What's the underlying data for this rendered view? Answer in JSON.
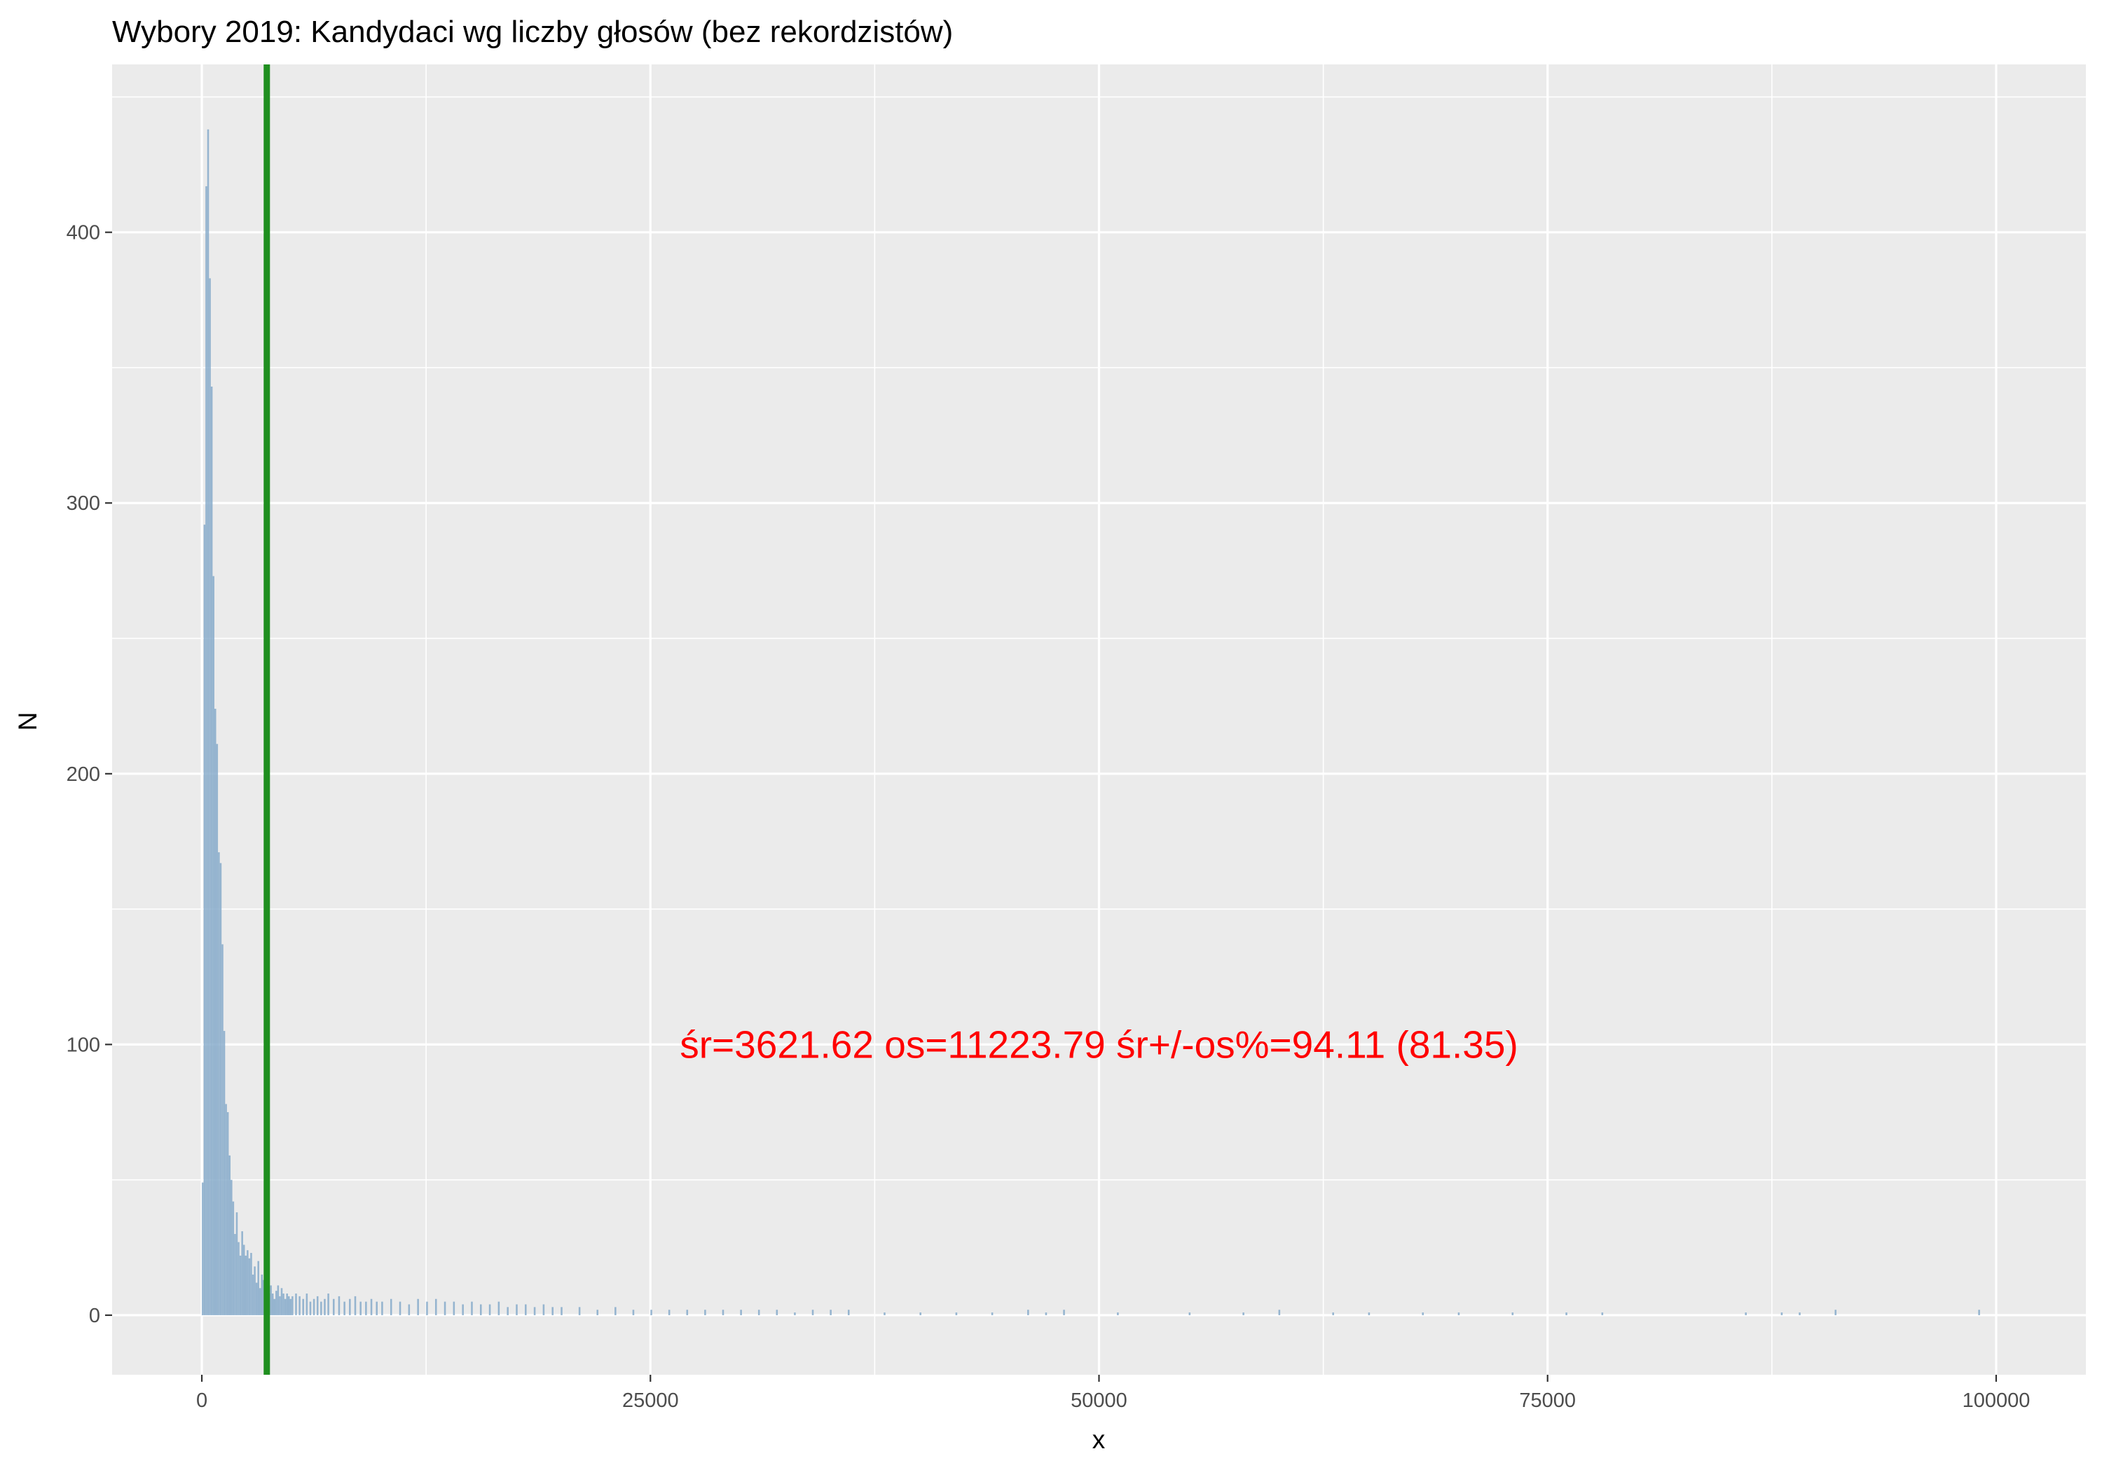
{
  "chart_data": {
    "type": "bar",
    "title": "Wybory 2019: Kandydaci wg liczby głosów (bez rekordzistów)",
    "xlabel": "x",
    "ylabel": "N",
    "xlim": [
      -5000,
      105000
    ],
    "ylim": [
      -22,
      462
    ],
    "x_ticks": [
      0,
      25000,
      50000,
      75000,
      100000
    ],
    "x_tick_labels": [
      "0",
      "25000",
      "50000",
      "75000",
      "100000"
    ],
    "y_ticks": [
      0,
      100,
      200,
      300,
      400
    ],
    "y_tick_labels": [
      "0",
      "100",
      "200",
      "300",
      "400"
    ],
    "grid": true,
    "bin_width": 100,
    "bar_color": "#86aaca",
    "mean_line": {
      "x": 3621.62,
      "color": "#1f8f1f"
    },
    "annotation": {
      "text": "śr=3621.62 os=11223.79 śr+/-os%=94.11 (81.35)",
      "x": 50000,
      "y": 100,
      "color": "#ff0000"
    },
    "bins_x": [
      0,
      100,
      200,
      300,
      400,
      500,
      600,
      700,
      800,
      900,
      1000,
      1100,
      1200,
      1300,
      1400,
      1500,
      1600,
      1700,
      1800,
      1900,
      2000,
      2100,
      2200,
      2300,
      2400,
      2500,
      2600,
      2700,
      2800,
      2900,
      3000,
      3100,
      3200,
      3300,
      3400,
      3500,
      3600,
      3700,
      3800,
      3900,
      4000,
      4100,
      4200,
      4300,
      4400,
      4500,
      4600,
      4700,
      4800,
      4900,
      5000,
      5200,
      5400,
      5600,
      5800,
      6000,
      6200,
      6400,
      6600,
      6800,
      7000,
      7300,
      7600,
      7900,
      8200,
      8500,
      8800,
      9100,
      9400,
      9700,
      10000,
      10500,
      11000,
      11500,
      12000,
      12500,
      13000,
      13500,
      14000,
      14500,
      15000,
      15500,
      16000,
      16500,
      17000,
      17500,
      18000,
      18500,
      19000,
      19500,
      20000,
      21000,
      22000,
      23000,
      24000,
      25000,
      26000,
      27000,
      28000,
      29000,
      30000,
      31000,
      32000,
      33000,
      34000,
      35000,
      36000,
      38000,
      40000,
      42000,
      44000,
      46000,
      47000,
      48000,
      51000,
      55000,
      58000,
      60000,
      63000,
      65000,
      68000,
      70000,
      73000,
      76000,
      78000,
      86000,
      88000,
      89000,
      91000,
      99000
    ],
    "bins_y": [
      49,
      292,
      417,
      438,
      383,
      343,
      273,
      224,
      211,
      171,
      167,
      137,
      105,
      78,
      75,
      59,
      50,
      42,
      30,
      38,
      27,
      22,
      31,
      26,
      22,
      24,
      21,
      23,
      15,
      18,
      12,
      20,
      10,
      15,
      13,
      11,
      9,
      8,
      11,
      8,
      6,
      9,
      11,
      7,
      10,
      8,
      6,
      8,
      7,
      6,
      7,
      8,
      7,
      6,
      8,
      5,
      6,
      7,
      5,
      6,
      8,
      6,
      7,
      5,
      6,
      7,
      5,
      5,
      6,
      5,
      5,
      6,
      5,
      4,
      6,
      5,
      6,
      5,
      5,
      4,
      5,
      4,
      4,
      5,
      3,
      4,
      4,
      3,
      4,
      3,
      3,
      3,
      2,
      3,
      2,
      2,
      2,
      2,
      2,
      2,
      2,
      2,
      2,
      1,
      2,
      2,
      2,
      1,
      1,
      1,
      1,
      2,
      1,
      2,
      1,
      1,
      1,
      2,
      1,
      1,
      1,
      1,
      1,
      1,
      1,
      1,
      1,
      1,
      2,
      2
    ]
  }
}
